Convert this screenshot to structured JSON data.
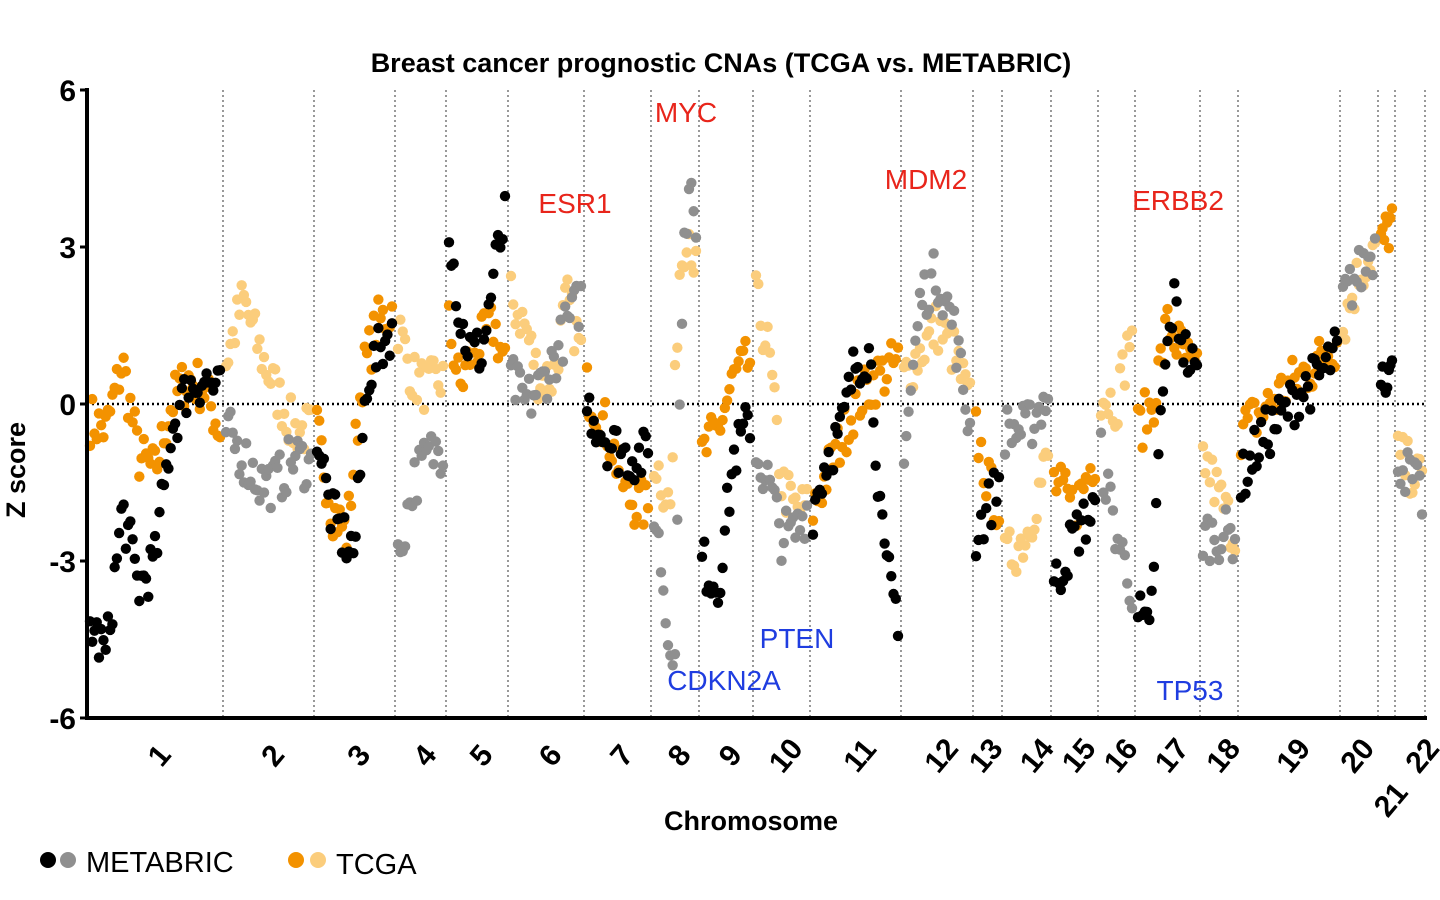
{
  "chart_data": {
    "type": "scatter",
    "title": "Breast cancer prognostic CNAs (TCGA vs. METABRIC)",
    "xlabel": "Chromosome",
    "ylabel": "Z score",
    "ylim": [
      -6,
      6
    ],
    "yticks": [
      "-6",
      "-3",
      "0",
      "3",
      "6"
    ],
    "categories": [
      "1",
      "2",
      "3",
      "4",
      "5",
      "6",
      "7",
      "8",
      "9",
      "10",
      "11",
      "12",
      "13",
      "14",
      "15",
      "16",
      "17",
      "18",
      "19",
      "20",
      "21",
      "22"
    ],
    "grid": "vertical dotted lines at chromosome boundaries; dotted line at Z = 0",
    "legend_placement": "bottom-left",
    "series": [
      {
        "name": "METABRIC",
        "colors": [
          "#000000",
          "#8f8f8f"
        ],
        "profiles": [
          [
            -4.2,
            -4.8,
            -2,
            -3.5,
            -3,
            -0.5,
            0.3,
            0.5,
            0.2
          ],
          [
            -0.5,
            -1,
            -1.5,
            -1.5,
            -1,
            -1.2
          ],
          [
            -0.5,
            -2,
            -2.5,
            -2.8,
            0.5,
            1,
            1.5
          ],
          [
            -3,
            -1.5,
            -1,
            -0.8
          ],
          [
            3.5,
            1.5,
            1,
            1,
            2.5,
            3.5
          ],
          [
            0.5,
            0,
            0.3,
            0.8,
            1.5,
            2
          ],
          [
            0,
            -0.7,
            -1,
            -1
          ],
          [
            -2,
            -3,
            -4.5,
            -4.5,
            2,
            4.5,
            3
          ],
          [
            -3,
            -3.5,
            -1,
            -0.3
          ],
          [
            -1,
            -1.5,
            -2.5,
            -2.5,
            -2
          ],
          [
            -2,
            -1,
            -0.5,
            0.8,
            1,
            -3,
            -4
          ],
          [
            -1,
            2,
            2.5,
            1.5,
            -0.5
          ],
          [
            -2.5,
            -2,
            -1.5
          ],
          [
            -0.5,
            -0.5,
            0.2
          ],
          [
            -3.5,
            -2.5,
            -2
          ],
          [
            -1,
            -2.5,
            -3.5
          ],
          [
            -4,
            -4.5,
            0,
            2,
            1,
            0.5
          ],
          [
            -2.5,
            -2.5
          ],
          [
            -1.5,
            -0.7,
            -0.3,
            0.2,
            0.5,
            1
          ],
          [
            2,
            2.5,
            3
          ],
          [
            0.8,
            0.5
          ],
          [
            -1,
            -1.8
          ]
        ]
      },
      {
        "name": "TCGA",
        "colors": [
          "#f39200",
          "#fbcd7c"
        ],
        "profiles": [
          [
            -0.3,
            -0.5,
            0.8,
            -1,
            -1.3,
            0,
            0.5,
            0.3,
            -0.5
          ],
          [
            0.8,
            2,
            1,
            0.2,
            -0.5,
            -0.5
          ],
          [
            -0.5,
            -2,
            -2.5,
            0.5,
            1.5,
            1.8
          ],
          [
            1.5,
            0.5,
            0.3,
            0.5
          ],
          [
            1.5,
            0.3,
            1,
            1.2,
            1.5,
            0.8
          ],
          [
            2,
            1.5,
            0.5,
            0.5,
            2,
            1
          ],
          [
            0.3,
            -0.5,
            -1.8,
            -2
          ],
          [
            -1,
            -1.5,
            -2,
            2.5,
            3.5,
            2.5
          ],
          [
            -1,
            -0.5,
            0.5,
            0.8
          ],
          [
            2,
            1,
            -1.5,
            -2,
            -2
          ],
          [
            -2,
            -1,
            0,
            0.5,
            0.8
          ],
          [
            0.5,
            1,
            1.5,
            1,
            0
          ],
          [
            -0.5,
            -1.5,
            -2
          ],
          [
            -3,
            -2.5,
            -1
          ],
          [
            -1.5,
            -2,
            -1
          ],
          [
            0.2,
            0,
            1.5
          ],
          [
            -0.5,
            0,
            1.5,
            1,
            0.5
          ],
          [
            -1,
            -2.5
          ],
          [
            -0.5,
            -0.2,
            0.2,
            0.5,
            0.8,
            1.2
          ],
          [
            1.5,
            2.5,
            3
          ],
          [
            3,
            3.5
          ],
          [
            -1,
            -1.5
          ]
        ]
      }
    ],
    "annotations": [
      {
        "text": "MYC",
        "color": "#e8251b",
        "chromosome": "8"
      },
      {
        "text": "ESR1",
        "color": "#e8251b",
        "chromosome": "6"
      },
      {
        "text": "MDM2",
        "color": "#e8251b",
        "chromosome": "12"
      },
      {
        "text": "ERBB2",
        "color": "#e8251b",
        "chromosome": "17"
      },
      {
        "text": "CDKN2A",
        "color": "#1f3de0",
        "chromosome": "9"
      },
      {
        "text": "PTEN",
        "color": "#1f3de0",
        "chromosome": "10"
      },
      {
        "text": "TP53",
        "color": "#1f3de0",
        "chromosome": "17"
      }
    ]
  }
}
